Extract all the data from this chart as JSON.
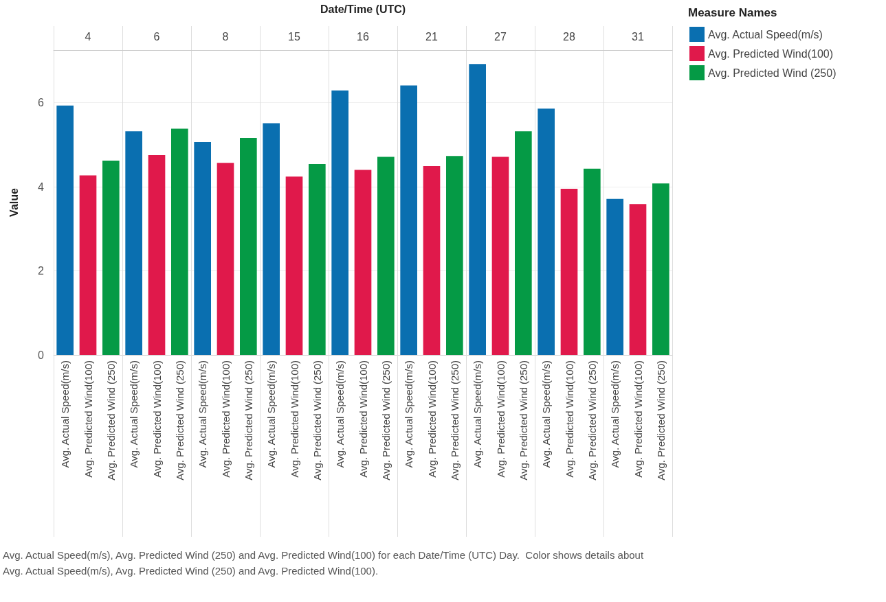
{
  "chart_data": {
    "type": "bar",
    "xlabel": "Date/Time (UTC)",
    "ylabel": "Value",
    "legend_title": "Measure Names",
    "categories": [
      "4",
      "6",
      "8",
      "15",
      "16",
      "21",
      "27",
      "28",
      "31"
    ],
    "series": [
      {
        "name": "Avg. Actual Speed(m/s)",
        "color": "#0a6fb0",
        "values": [
          5.93,
          5.32,
          5.06,
          5.51,
          6.29,
          6.41,
          6.92,
          5.86,
          3.71
        ]
      },
      {
        "name": "Avg. Predicted Wind(100)",
        "color": "#e0194b",
        "values": [
          4.27,
          4.75,
          4.57,
          4.24,
          4.4,
          4.49,
          4.71,
          3.95,
          3.59
        ]
      },
      {
        "name": "Avg. Predicted Wind (250)",
        "color": "#059a45",
        "values": [
          4.62,
          5.38,
          5.16,
          4.54,
          4.71,
          4.73,
          5.32,
          4.43,
          4.08
        ]
      }
    ],
    "ylim": [
      0,
      7.25
    ],
    "yticks": [
      0,
      2,
      4,
      6
    ],
    "grid": "y",
    "legend": "top right",
    "annotations": [
      "Avg. Actual Speed(m/s), Avg. Predicted Wind (250) and Avg. Predicted Wind(100) for each Date/Time (UTC) Day.  Color shows details about Avg. Actual Speed(m/s), Avg. Predicted Wind (250) and Avg. Predicted Wind(100)."
    ]
  }
}
